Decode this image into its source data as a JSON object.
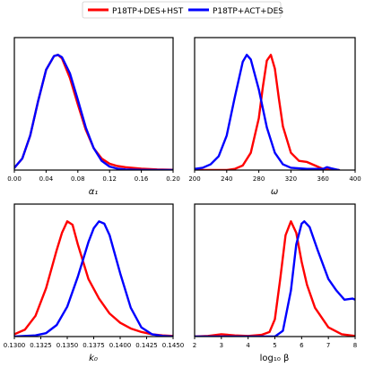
{
  "legend": [
    {
      "name": "P18TP+DES+HST",
      "color": "#ff0000"
    },
    {
      "name": "P18TP+ACT+DES",
      "color": "#0000ff"
    }
  ],
  "chart_data": [
    {
      "type": "line",
      "xlabel": "α₁",
      "xlim": [
        0.0,
        0.2
      ],
      "ylim": [
        0,
        1.15
      ],
      "y_ticks_shown": false,
      "xticks": [
        "0.00",
        "0.04",
        "0.08",
        "0.12",
        "0.16",
        "0.20"
      ],
      "xtick_values": [
        0.0,
        0.04,
        0.08,
        0.12,
        0.16,
        0.2
      ],
      "series": [
        {
          "name": "P18TP+DES+HST",
          "color": "#ff0000",
          "x": [
            0.0,
            0.01,
            0.02,
            0.03,
            0.04,
            0.05,
            0.055,
            0.06,
            0.07,
            0.08,
            0.09,
            0.1,
            0.11,
            0.12,
            0.13,
            0.14,
            0.16,
            0.18,
            0.2
          ],
          "y": [
            0.02,
            0.1,
            0.3,
            0.6,
            0.87,
            0.99,
            1.0,
            0.97,
            0.8,
            0.57,
            0.35,
            0.19,
            0.1,
            0.055,
            0.035,
            0.025,
            0.012,
            0.005,
            0.002
          ]
        },
        {
          "name": "P18TP+ACT+DES",
          "color": "#0000ff",
          "x": [
            0.0,
            0.01,
            0.02,
            0.03,
            0.04,
            0.05,
            0.055,
            0.06,
            0.07,
            0.08,
            0.09,
            0.1,
            0.11,
            0.12,
            0.13,
            0.14,
            0.16,
            0.18,
            0.2
          ],
          "y": [
            0.02,
            0.1,
            0.3,
            0.6,
            0.87,
            0.99,
            1.0,
            0.98,
            0.84,
            0.61,
            0.37,
            0.19,
            0.08,
            0.03,
            0.012,
            0.005,
            0.001,
            0.0,
            0.0
          ]
        }
      ]
    },
    {
      "type": "line",
      "xlabel": "ω",
      "xlim": [
        200,
        400
      ],
      "ylim": [
        0,
        1.15
      ],
      "y_ticks_shown": false,
      "xticks": [
        "200",
        "240",
        "280",
        "320",
        "360",
        "400"
      ],
      "xtick_values": [
        200,
        240,
        280,
        320,
        360,
        400
      ],
      "series": [
        {
          "name": "P18TP+DES+HST",
          "color": "#ff0000",
          "x": [
            200,
            240,
            250,
            260,
            270,
            280,
            285,
            290,
            295,
            300,
            305,
            310,
            320,
            330,
            340,
            350,
            360,
            370,
            380
          ],
          "y": [
            0.0,
            0.0,
            0.01,
            0.04,
            0.15,
            0.45,
            0.72,
            0.95,
            1.0,
            0.88,
            0.62,
            0.38,
            0.15,
            0.08,
            0.07,
            0.04,
            0.01,
            0.005,
            0.0
          ]
        },
        {
          "name": "P18TP+ACT+DES",
          "color": "#0000ff",
          "x": [
            200,
            210,
            220,
            230,
            240,
            250,
            260,
            265,
            270,
            280,
            290,
            300,
            310,
            320,
            340,
            360,
            365,
            370,
            380
          ],
          "y": [
            0.01,
            0.02,
            0.05,
            0.12,
            0.3,
            0.63,
            0.94,
            1.0,
            0.96,
            0.7,
            0.37,
            0.15,
            0.05,
            0.02,
            0.01,
            0.01,
            0.025,
            0.015,
            0.0
          ]
        }
      ]
    },
    {
      "type": "line",
      "xlabel": "k₀",
      "xlim": [
        0.13,
        0.145
      ],
      "ylim": [
        0,
        1.15
      ],
      "y_ticks_shown": false,
      "xticks": [
        "0.1300",
        "0.1325",
        "0.1350",
        "0.1375",
        "0.1400",
        "0.1425",
        "0.1450"
      ],
      "xtick_values": [
        0.13,
        0.1325,
        0.135,
        0.1375,
        0.14,
        0.1425,
        0.145
      ],
      "series": [
        {
          "name": "P18TP+DES+HST",
          "color": "#ff0000",
          "x": [
            0.13,
            0.131,
            0.132,
            0.133,
            0.134,
            0.1345,
            0.135,
            0.1355,
            0.136,
            0.137,
            0.138,
            0.139,
            0.14,
            0.141,
            0.142,
            0.143,
            0.144,
            0.145
          ],
          "y": [
            0.02,
            0.06,
            0.18,
            0.42,
            0.75,
            0.9,
            1.0,
            0.97,
            0.8,
            0.5,
            0.33,
            0.2,
            0.12,
            0.07,
            0.04,
            0.02,
            0.01,
            0.005
          ]
        },
        {
          "name": "P18TP+ACT+DES",
          "color": "#0000ff",
          "x": [
            0.13,
            0.132,
            0.133,
            0.134,
            0.135,
            0.136,
            0.137,
            0.1375,
            0.138,
            0.1385,
            0.139,
            0.14,
            0.141,
            0.142,
            0.143,
            0.144,
            0.145
          ],
          "y": [
            0.0,
            0.01,
            0.03,
            0.1,
            0.26,
            0.52,
            0.82,
            0.94,
            1.0,
            0.98,
            0.88,
            0.55,
            0.25,
            0.08,
            0.02,
            0.005,
            0.0
          ]
        }
      ]
    },
    {
      "type": "line",
      "xlabel": "log₁₀ β",
      "xlim": [
        2,
        8
      ],
      "ylim": [
        0,
        1.15
      ],
      "y_ticks_shown": false,
      "xticks": [
        "2",
        "3",
        "4",
        "5",
        "6",
        "7",
        "8"
      ],
      "xtick_values": [
        2,
        3,
        4,
        5,
        6,
        7,
        8
      ],
      "series": [
        {
          "name": "P18TP+DES+HST",
          "color": "#ff0000",
          "x": [
            2,
            2.5,
            3,
            3.5,
            4,
            4.5,
            4.8,
            5.0,
            5.2,
            5.4,
            5.6,
            5.8,
            6.0,
            6.2,
            6.5,
            7.0,
            7.5,
            8.0
          ],
          "y": [
            0.0,
            0.005,
            0.02,
            0.01,
            0.005,
            0.015,
            0.04,
            0.15,
            0.5,
            0.88,
            1.0,
            0.9,
            0.65,
            0.45,
            0.25,
            0.08,
            0.02,
            0.005
          ]
        },
        {
          "name": "P18TP+ACT+DES",
          "color": "#0000ff",
          "x": [
            2,
            4,
            5.0,
            5.3,
            5.6,
            5.8,
            6.0,
            6.1,
            6.3,
            6.6,
            7.0,
            7.3,
            7.6,
            7.9,
            8.0
          ],
          "y": [
            0.0,
            0.0,
            0.0,
            0.05,
            0.4,
            0.8,
            0.98,
            1.0,
            0.95,
            0.75,
            0.5,
            0.4,
            0.32,
            0.33,
            0.32
          ]
        }
      ]
    }
  ]
}
